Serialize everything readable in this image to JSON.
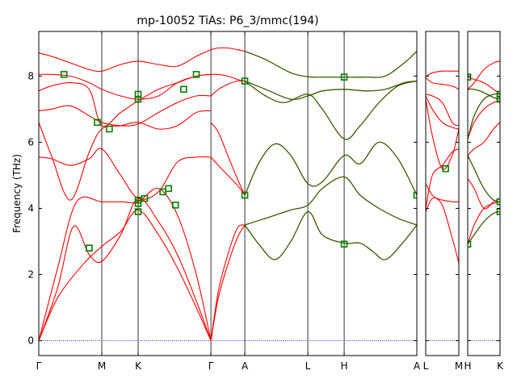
{
  "chart_data": {
    "type": "line",
    "title": "mp-10052   TiAs: P6_3/mmc(194)",
    "ylabel": "Frequency (THz)",
    "xlabel": "",
    "ylim": [
      -0.45,
      9.35
    ],
    "yticks": [
      0,
      2,
      4,
      6,
      8
    ],
    "colors": {
      "band": "#ff0000",
      "highlight": "#3a5a00",
      "marker": "#008000",
      "zero_line": "#0000ff"
    },
    "panels": [
      {
        "k_labels": [
          "Γ",
          "M",
          "K",
          "Γ",
          "A",
          "L",
          "H",
          "A"
        ],
        "k_positions": [
          0,
          1.0,
          1.577,
          2.732,
          3.27,
          4.27,
          4.847,
          6.0
        ],
        "series": [
          {
            "x": [
              0,
              0.3,
              0.7,
              1.0,
              1.3,
              1.577,
              1.9,
              2.2,
              2.5,
              2.732
            ],
            "y": [
              0,
              1.3,
              2.3,
              2.85,
              3.3,
              3.95,
              3.2,
              2.2,
              1.0,
              0
            ]
          },
          {
            "x": [
              0,
              0.3,
              0.55,
              0.8,
              1.0,
              1.3,
              1.577,
              1.9,
              2.2,
              2.5,
              2.732
            ],
            "y": [
              0,
              1.6,
              3.45,
              2.6,
              2.4,
              3.2,
              4.3,
              3.6,
              2.6,
              1.2,
              0
            ]
          },
          {
            "x": [
              0,
              0.3,
              0.6,
              1.0,
              1.3,
              1.577,
              1.9,
              2.2,
              2.5,
              2.732
            ],
            "y": [
              0,
              2.2,
              4.2,
              4.2,
              4.2,
              4.2,
              4.6,
              3.8,
              2.0,
              0
            ]
          },
          {
            "x": [
              0,
              0.2,
              0.5,
              0.8,
              1.0,
              1.3,
              1.577,
              1.9,
              2.2,
              2.5,
              2.732
            ],
            "y": [
              5.55,
              5.5,
              5.3,
              5.5,
              5.8,
              5.0,
              4.3,
              4.5,
              5.4,
              5.55,
              5.55
            ]
          },
          {
            "x": [
              0,
              0.2,
              0.5,
              0.8,
              1.0,
              1.3,
              1.577,
              1.9,
              2.2,
              2.5,
              2.732
            ],
            "y": [
              6.6,
              5.6,
              4.25,
              5.7,
              6.4,
              6.5,
              6.6,
              6.4,
              6.5,
              6.9,
              6.95
            ]
          },
          {
            "x": [
              0,
              0.2,
              0.5,
              0.8,
              1.0,
              1.3,
              1.577,
              1.9,
              2.2,
              2.5,
              2.732
            ],
            "y": [
              6.95,
              7.0,
              7.1,
              6.8,
              6.6,
              6.5,
              6.55,
              6.9,
              7.2,
              7.4,
              7.4
            ]
          },
          {
            "x": [
              0,
              0.2,
              0.5,
              0.8,
              1.0,
              1.3,
              1.577,
              1.9,
              2.2,
              2.5,
              2.732
            ],
            "y": [
              7.55,
              7.7,
              7.8,
              7.6,
              6.5,
              6.9,
              7.25,
              7.6,
              7.8,
              8.0,
              8.05
            ]
          },
          {
            "x": [
              0,
              0.2,
              0.5,
              0.8,
              1.0,
              1.3,
              1.577,
              1.9,
              2.2,
              2.5,
              2.732
            ],
            "y": [
              8.05,
              8.05,
              8.0,
              7.8,
              7.6,
              7.4,
              7.3,
              7.4,
              7.8,
              8.0,
              8.05
            ]
          },
          {
            "x": [
              0,
              0.2,
              0.5,
              0.8,
              1.0,
              1.3,
              1.577,
              1.9,
              2.2,
              2.5,
              2.732
            ],
            "y": [
              8.7,
              8.6,
              8.4,
              8.2,
              8.15,
              8.35,
              8.45,
              8.35,
              8.3,
              8.6,
              8.8
            ]
          },
          {
            "x": [
              2.732,
              2.85,
              3.0,
              3.15,
              3.27
            ],
            "y": [
              0,
              1.5,
              2.6,
              3.4,
              3.5
            ]
          },
          {
            "x": [
              2.732,
              2.85,
              3.0,
              3.15,
              3.27
            ],
            "y": [
              0,
              1.3,
              2.3,
              3.1,
              3.5
            ]
          },
          {
            "x": [
              2.732,
              2.85,
              3.0,
              3.15,
              3.27
            ],
            "y": [
              5.55,
              5.3,
              5.0,
              4.7,
              4.4
            ]
          },
          {
            "x": [
              2.732,
              2.85,
              3.0,
              3.15,
              3.27
            ],
            "y": [
              6.6,
              6.3,
              5.6,
              4.9,
              4.4
            ]
          },
          {
            "x": [
              2.732,
              2.85,
              3.0,
              3.15,
              3.27
            ],
            "y": [
              7.4,
              7.6,
              7.75,
              7.85,
              7.85
            ]
          },
          {
            "x": [
              2.732,
              2.85,
              3.0,
              3.15,
              3.27
            ],
            "y": [
              8.05,
              8.05,
              8.0,
              7.9,
              7.85
            ]
          },
          {
            "x": [
              2.732,
              2.85,
              3.0,
              3.15,
              3.27
            ],
            "y": [
              8.8,
              8.85,
              8.85,
              8.8,
              8.75
            ]
          }
        ],
        "highlight_series": [
          {
            "x": [
              3.27,
              3.5,
              3.75,
              4.0,
              4.27,
              4.5,
              4.847,
              5.1,
              5.3,
              5.5,
              5.75,
              6.0
            ],
            "y": [
              3.5,
              2.9,
              2.45,
              3.0,
              3.9,
              3.2,
              2.95,
              2.95,
              2.7,
              2.45,
              2.9,
              3.5
            ]
          },
          {
            "x": [
              3.27,
              3.6,
              4.0,
              4.27,
              4.5,
              4.847,
              5.1,
              5.4,
              5.7,
              6.0
            ],
            "y": [
              3.5,
              3.7,
              3.95,
              4.1,
              4.6,
              4.95,
              4.4,
              4.0,
              3.7,
              3.5
            ]
          },
          {
            "x": [
              3.27,
              3.5,
              3.75,
              4.0,
              4.27,
              4.5,
              4.847,
              5.1,
              5.4,
              5.7,
              6.0
            ],
            "y": [
              4.4,
              5.4,
              5.95,
              5.6,
              4.75,
              4.8,
              5.6,
              5.35,
              6.0,
              5.5,
              4.4
            ]
          },
          {
            "x": [
              3.27,
              3.6,
              3.9,
              4.27,
              4.5,
              4.847,
              5.1,
              5.4,
              5.7,
              6.0
            ],
            "y": [
              7.85,
              7.4,
              7.2,
              7.45,
              7.0,
              6.1,
              6.5,
              7.2,
              7.7,
              7.85
            ]
          },
          {
            "x": [
              3.27,
              3.6,
              4.0,
              4.27,
              4.5,
              4.847,
              5.2,
              5.5,
              5.8,
              6.0
            ],
            "y": [
              7.85,
              7.6,
              7.3,
              7.4,
              7.55,
              7.6,
              7.55,
              7.6,
              7.8,
              7.85
            ]
          },
          {
            "x": [
              3.27,
              3.6,
              4.0,
              4.27,
              4.5,
              4.847,
              5.2,
              5.5,
              5.8,
              6.0
            ],
            "y": [
              8.75,
              8.5,
              8.1,
              7.98,
              7.97,
              7.97,
              7.97,
              8.0,
              8.4,
              8.75
            ]
          }
        ],
        "markers": [
          {
            "x": 0.4,
            "y": 8.05
          },
          {
            "x": 0.8,
            "y": 2.8
          },
          {
            "x": 0.93,
            "y": 6.6
          },
          {
            "x": 1.12,
            "y": 6.4
          },
          {
            "x": 1.577,
            "y": 7.45
          },
          {
            "x": 1.577,
            "y": 7.3
          },
          {
            "x": 1.577,
            "y": 4.25
          },
          {
            "x": 1.577,
            "y": 4.15
          },
          {
            "x": 1.577,
            "y": 3.9
          },
          {
            "x": 1.68,
            "y": 4.3
          },
          {
            "x": 1.97,
            "y": 4.5
          },
          {
            "x": 2.06,
            "y": 4.6
          },
          {
            "x": 2.17,
            "y": 4.1
          },
          {
            "x": 2.3,
            "y": 7.6
          },
          {
            "x": 2.5,
            "y": 8.05
          },
          {
            "x": 3.27,
            "y": 7.85
          },
          {
            "x": 3.27,
            "y": 4.4
          },
          {
            "x": 4.847,
            "y": 7.97
          },
          {
            "x": 4.847,
            "y": 2.92
          },
          {
            "x": 6.0,
            "y": 4.4
          }
        ]
      },
      {
        "k_labels": [
          "L",
          "M"
        ],
        "k_positions": [
          0,
          1.0
        ],
        "series": [
          {
            "x": [
              0,
              0.2,
              0.5,
              0.8,
              1.0
            ],
            "y": [
              4.75,
              4.4,
              4.1,
              3.1,
              2.35
            ]
          },
          {
            "x": [
              0,
              0.2,
              0.5,
              0.8,
              1.0
            ],
            "y": [
              4.0,
              5.0,
              5.3,
              5.7,
              5.8
            ]
          },
          {
            "x": [
              0,
              0.2,
              0.5,
              0.8,
              1.0
            ],
            "y": [
              3.9,
              4.3,
              4.25,
              4.2,
              4.2
            ]
          },
          {
            "x": [
              0,
              0.2,
              0.5,
              0.8,
              1.0
            ],
            "y": [
              7.3,
              6.2,
              5.2,
              5.6,
              6.4
            ]
          },
          {
            "x": [
              0,
              0.2,
              0.5,
              0.8,
              1.0
            ],
            "y": [
              7.4,
              7.0,
              6.6,
              6.45,
              6.4
            ]
          },
          {
            "x": [
              0,
              0.2,
              0.5,
              0.8,
              1.0
            ],
            "y": [
              7.45,
              7.4,
              7.2,
              6.6,
              6.5
            ]
          },
          {
            "x": [
              0,
              0.2,
              0.5,
              0.8,
              1.0
            ],
            "y": [
              7.95,
              7.8,
              7.75,
              7.7,
              7.6
            ]
          },
          {
            "x": [
              0,
              0.2,
              0.5,
              0.8,
              1.0
            ],
            "y": [
              7.98,
              8.1,
              8.15,
              8.15,
              8.15
            ]
          }
        ],
        "highlight_series": [],
        "markers": [
          {
            "x": 0.6,
            "y": 5.2
          }
        ]
      },
      {
        "k_labels": [
          "H",
          "K"
        ],
        "k_positions": [
          0,
          1.0
        ],
        "series": [
          {
            "x": [
              0,
              0.2,
              0.5,
              0.8,
              1.0
            ],
            "y": [
              2.92,
              3.5,
              4.0,
              4.15,
              4.2
            ]
          },
          {
            "x": [
              0,
              0.2,
              0.5,
              0.8,
              1.0
            ],
            "y": [
              4.9,
              4.6,
              4.0,
              4.2,
              4.3
            ]
          },
          {
            "x": [
              0,
              0.2,
              0.5,
              0.8,
              1.0
            ],
            "y": [
              5.6,
              5.8,
              6.0,
              6.4,
              6.6
            ]
          },
          {
            "x": [
              0,
              0.2,
              0.5,
              0.8,
              1.0
            ],
            "y": [
              6.1,
              6.6,
              7.0,
              7.2,
              7.25
            ]
          },
          {
            "x": [
              0,
              0.2,
              0.5,
              0.8,
              1.0
            ],
            "y": [
              7.6,
              7.8,
              8.2,
              8.4,
              8.45
            ]
          },
          {
            "x": [
              0,
              0.2,
              0.5,
              0.8,
              1.0
            ],
            "y": [
              7.97,
              7.9,
              7.8,
              7.6,
              7.45
            ]
          }
        ],
        "highlight_series": [
          {
            "x": [
              0,
              0.2,
              0.5,
              0.8,
              1.0
            ],
            "y": [
              2.92,
              3.2,
              3.6,
              3.85,
              3.9
            ]
          },
          {
            "x": [
              0,
              0.2,
              0.5,
              0.8,
              1.0
            ],
            "y": [
              5.6,
              5.2,
              4.6,
              4.25,
              4.2
            ]
          },
          {
            "x": [
              0,
              0.2,
              0.5,
              0.8,
              1.0
            ],
            "y": [
              6.1,
              6.8,
              7.3,
              7.45,
              7.45
            ]
          },
          {
            "x": [
              0,
              0.2,
              0.5,
              0.8,
              1.0
            ],
            "y": [
              7.6,
              7.6,
              7.5,
              7.35,
              7.3
            ]
          }
        ],
        "markers": [
          {
            "x": 0,
            "y": 7.97
          },
          {
            "x": 0,
            "y": 2.92
          },
          {
            "x": 1.0,
            "y": 7.45
          },
          {
            "x": 1.0,
            "y": 7.3
          },
          {
            "x": 1.0,
            "y": 4.2
          },
          {
            "x": 1.0,
            "y": 3.9
          }
        ]
      }
    ]
  }
}
